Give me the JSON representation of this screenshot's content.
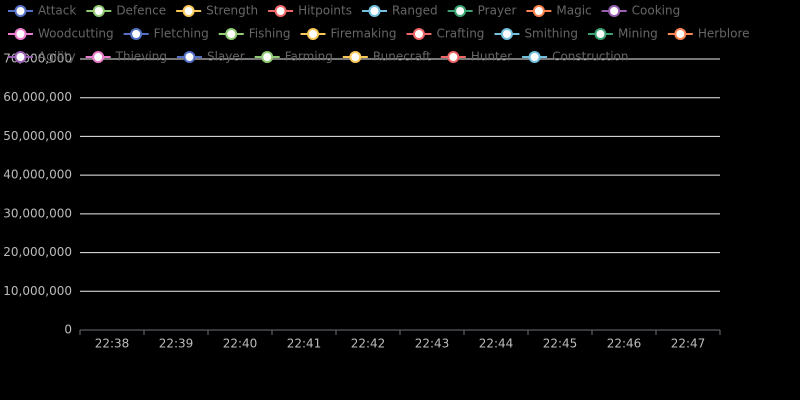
{
  "chart_data": {
    "type": "line",
    "categories": [
      "22:38",
      "22:39",
      "22:40",
      "22:41",
      "22:42",
      "22:43",
      "22:44",
      "22:45",
      "22:46",
      "22:47"
    ],
    "ylim": [
      0,
      70000000
    ],
    "yticks": [
      0,
      {
        "value": 10000000,
        "label": "10,000,000"
      },
      {
        "value": 20000000,
        "label": "20,000,000"
      },
      {
        "value": 30000000,
        "label": "30,000,000"
      },
      {
        "value": 40000000,
        "label": "40,000,000"
      },
      {
        "value": 50000000,
        "label": "50,000,000"
      },
      {
        "value": 60000000,
        "label": "60,000,000"
      },
      {
        "value": 70000000,
        "label": "70,000,000"
      }
    ],
    "grid": true,
    "legend": "top",
    "series": [
      {
        "name": "Attack",
        "color": "#5470c6",
        "values": [
          null,
          null,
          null,
          null,
          null,
          null,
          null,
          null,
          null,
          null
        ]
      },
      {
        "name": "Defence",
        "color": "#91cc75",
        "values": [
          null,
          null,
          null,
          null,
          null,
          null,
          null,
          null,
          null,
          null
        ]
      },
      {
        "name": "Strength",
        "color": "#fac858",
        "values": [
          null,
          null,
          null,
          null,
          null,
          null,
          null,
          null,
          null,
          null
        ]
      },
      {
        "name": "Hitpoints",
        "color": "#ee6666",
        "values": [
          null,
          null,
          null,
          null,
          null,
          null,
          null,
          null,
          null,
          null
        ]
      },
      {
        "name": "Ranged",
        "color": "#73c0de",
        "values": [
          null,
          null,
          null,
          null,
          null,
          null,
          null,
          null,
          null,
          null
        ]
      },
      {
        "name": "Prayer",
        "color": "#3ba272",
        "values": [
          null,
          null,
          null,
          null,
          null,
          null,
          null,
          null,
          null,
          null
        ]
      },
      {
        "name": "Magic",
        "color": "#fc8452",
        "values": [
          null,
          null,
          null,
          null,
          null,
          null,
          null,
          null,
          null,
          null
        ]
      },
      {
        "name": "Cooking",
        "color": "#9a60b4",
        "values": [
          null,
          null,
          null,
          null,
          null,
          null,
          null,
          null,
          null,
          null
        ]
      },
      {
        "name": "Woodcutting",
        "color": "#ea7ccc",
        "values": [
          null,
          null,
          null,
          null,
          null,
          null,
          null,
          null,
          null,
          null
        ]
      },
      {
        "name": "Fletching",
        "color": "#5470c6",
        "values": [
          null,
          null,
          null,
          null,
          null,
          null,
          null,
          null,
          null,
          null
        ]
      },
      {
        "name": "Fishing",
        "color": "#91cc75",
        "values": [
          null,
          null,
          null,
          null,
          null,
          null,
          null,
          null,
          null,
          null
        ]
      },
      {
        "name": "Firemaking",
        "color": "#fac858",
        "values": [
          null,
          null,
          null,
          null,
          null,
          null,
          null,
          null,
          null,
          null
        ]
      },
      {
        "name": "Crafting",
        "color": "#ee6666",
        "values": [
          null,
          null,
          null,
          null,
          null,
          null,
          null,
          null,
          null,
          null
        ]
      },
      {
        "name": "Smithing",
        "color": "#73c0de",
        "values": [
          null,
          null,
          null,
          null,
          null,
          null,
          null,
          null,
          null,
          null
        ]
      },
      {
        "name": "Mining",
        "color": "#3ba272",
        "values": [
          null,
          null,
          null,
          null,
          null,
          null,
          null,
          null,
          null,
          null
        ]
      },
      {
        "name": "Herblore",
        "color": "#fc8452",
        "values": [
          null,
          null,
          null,
          null,
          null,
          null,
          null,
          null,
          null,
          null
        ]
      },
      {
        "name": "Agility",
        "color": "#9a60b4",
        "values": [
          null,
          null,
          null,
          null,
          null,
          null,
          null,
          null,
          null,
          null
        ]
      },
      {
        "name": "Thieving",
        "color": "#ea7ccc",
        "values": [
          null,
          null,
          null,
          null,
          null,
          null,
          null,
          null,
          null,
          null
        ]
      },
      {
        "name": "Slayer",
        "color": "#5470c6",
        "values": [
          null,
          null,
          null,
          null,
          null,
          null,
          null,
          null,
          null,
          null
        ]
      },
      {
        "name": "Farming",
        "color": "#91cc75",
        "values": [
          null,
          null,
          null,
          null,
          null,
          null,
          null,
          null,
          null,
          null
        ]
      },
      {
        "name": "Runecraft",
        "color": "#fac858",
        "values": [
          null,
          null,
          null,
          null,
          null,
          null,
          null,
          null,
          null,
          null
        ]
      },
      {
        "name": "Hunter",
        "color": "#ee6666",
        "values": [
          null,
          null,
          null,
          null,
          null,
          null,
          null,
          null,
          null,
          null
        ]
      },
      {
        "name": "Construction",
        "color": "#73c0de",
        "values": [
          null,
          null,
          null,
          null,
          null,
          null,
          null,
          null,
          null,
          null
        ]
      }
    ]
  }
}
